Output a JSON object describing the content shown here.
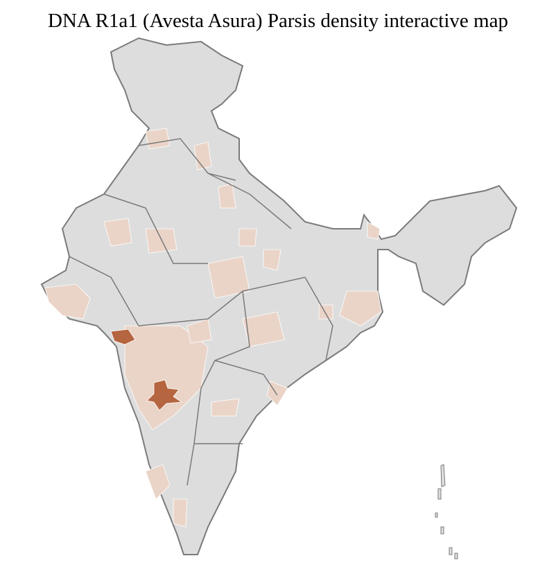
{
  "title": "DNA R1a1 (Avesta Asura) Parsis density interactive map",
  "map": {
    "type": "choropleth",
    "region": "India districts",
    "colors": {
      "no_data": "#dddddd",
      "low_density": "#ead4c8",
      "high_density": "#b5653f",
      "state_border": "#7a7a7a",
      "district_border": "#ffffff"
    }
  }
}
